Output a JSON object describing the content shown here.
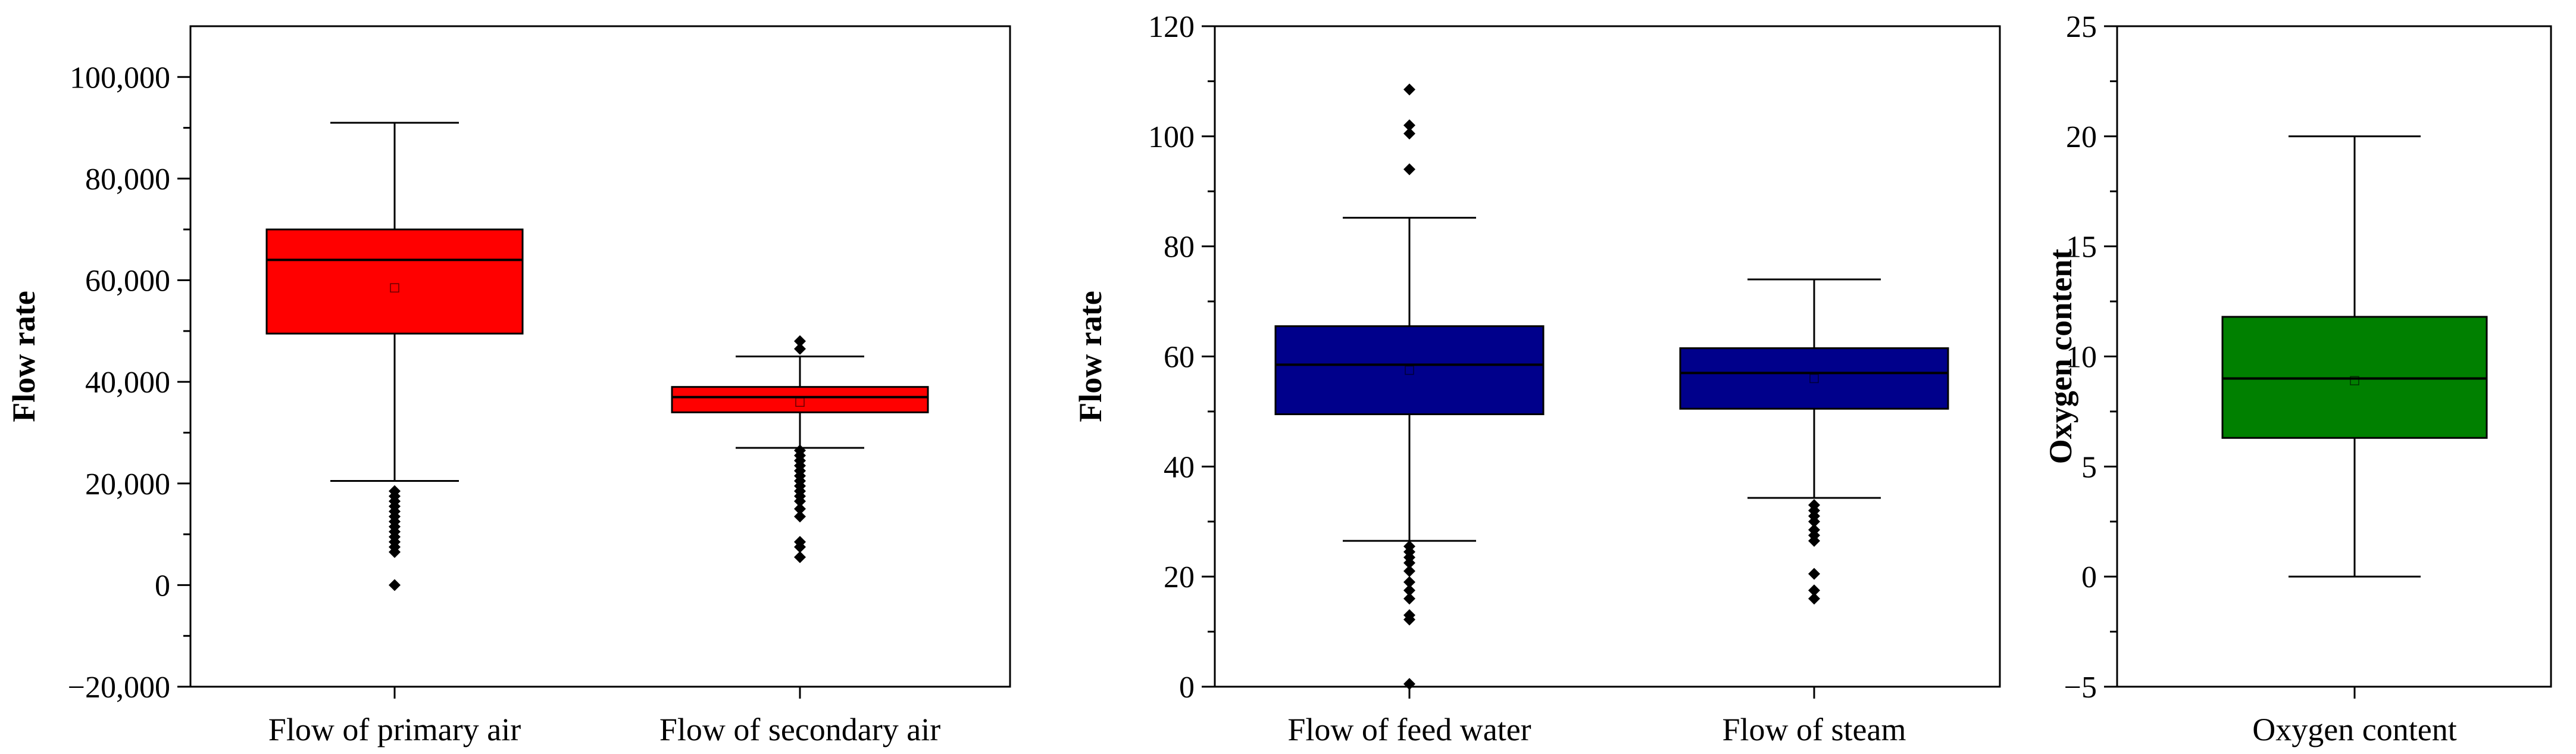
{
  "chart_data": [
    {
      "type": "box",
      "ylabel": "Flow rate",
      "ylim": [
        -20000,
        110000
      ],
      "major_ticks": [
        -20000,
        0,
        20000,
        40000,
        60000,
        80000,
        100000
      ],
      "tick_labels": [
        "−20,000",
        "0",
        "20,000",
        "40,000",
        "60,000",
        "80,000",
        "100,000"
      ],
      "color": "#ff0000",
      "boxes": [
        {
          "label": "Flow of primary air",
          "whisker_low": 20500,
          "q1": 49500,
          "median": 64000,
          "q3": 70000,
          "whisker_high": 91000,
          "mean": 58500,
          "outliers": [
            0,
            6500,
            7500,
            8500,
            9500,
            10500,
            11500,
            12500,
            13500,
            14500,
            15500,
            16500,
            17500,
            18500
          ]
        },
        {
          "label": "Flow of secondary air",
          "whisker_low": 27000,
          "q1": 34000,
          "median": 37000,
          "q3": 39000,
          "whisker_high": 45000,
          "mean": 36000,
          "outliers": [
            5500,
            7500,
            8500,
            13500,
            15000,
            16500,
            17500,
            18500,
            19500,
            20500,
            21500,
            22500,
            23500,
            24500,
            25500,
            26500,
            46500,
            48000
          ]
        }
      ]
    },
    {
      "type": "box",
      "ylabel": "Flow rate",
      "ylim": [
        0,
        120
      ],
      "major_ticks": [
        0,
        20,
        40,
        60,
        80,
        100,
        120
      ],
      "tick_labels": [
        "0",
        "20",
        "40",
        "60",
        "80",
        "100",
        "120"
      ],
      "color": "#00008b",
      "boxes": [
        {
          "label": "Flow of feed water",
          "whisker_low": 26.5,
          "q1": 49.5,
          "median": 58.5,
          "q3": 65.5,
          "whisker_high": 85.2,
          "mean": 57.5,
          "outliers": [
            0.5,
            12.2,
            13,
            16,
            17.5,
            19,
            21,
            22.5,
            23.5,
            24.5,
            25.5,
            94,
            100.5,
            102,
            108.5
          ]
        },
        {
          "label": "Flow of steam",
          "whisker_low": 34.3,
          "q1": 50.5,
          "median": 57,
          "q3": 61.5,
          "whisker_high": 74,
          "mean": 56,
          "outliers": [
            16,
            17.5,
            20.5,
            26.5,
            27.5,
            28.5,
            30,
            31,
            32,
            33
          ]
        }
      ]
    },
    {
      "type": "box",
      "ylabel": "Oxygen content",
      "ylim": [
        -5,
        25
      ],
      "major_ticks": [
        -5,
        0,
        5,
        10,
        15,
        20,
        25
      ],
      "tick_labels": [
        "−5",
        "0",
        "5",
        "10",
        "15",
        "20",
        "25"
      ],
      "color": "#008000",
      "boxes": [
        {
          "label": "Oxygen content",
          "whisker_low": 0,
          "q1": 6.3,
          "median": 9,
          "q3": 11.8,
          "whisker_high": 20,
          "mean": 8.9,
          "outliers": []
        }
      ]
    }
  ]
}
